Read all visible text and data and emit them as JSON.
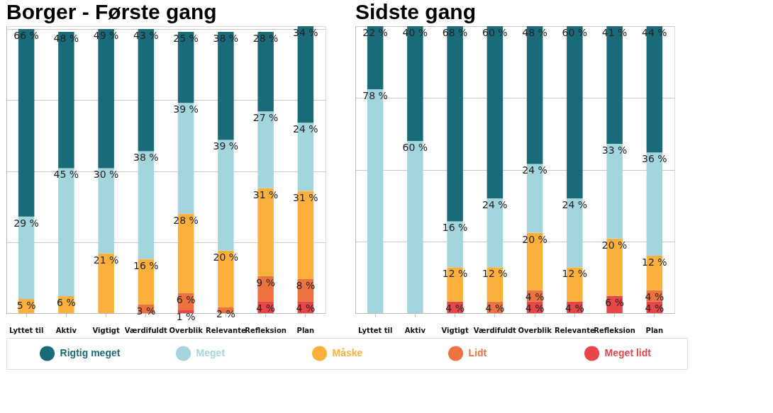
{
  "chart_data": [
    {
      "type": "bar",
      "title": "Borger - Første gang",
      "stacked": true,
      "categories": [
        "Lyttet til",
        "Aktiv",
        "Vigtigt",
        "Værdifuldt",
        "Overblik",
        "Relevante",
        "Refleksion",
        "Plan"
      ],
      "ylim": [
        0,
        101
      ],
      "yticks": [
        {
          "value": 0,
          "label": null
        },
        {
          "value": 25,
          "label": null
        },
        {
          "value": 50,
          "label": null
        },
        {
          "value": 75,
          "label": null
        },
        {
          "value": 100,
          "label": null
        }
      ],
      "tick_labels": "x",
      "grid": "y",
      "legend": "bottom",
      "series": [
        {
          "name": "Meget lidt",
          "color": "#e8474a",
          "values": [
            null,
            null,
            null,
            null,
            1,
            null,
            4,
            4
          ],
          "value_labels": [
            null,
            null,
            null,
            null,
            "1 %",
            null,
            "4 %",
            "4 %"
          ]
        },
        {
          "name": "Lidt",
          "color": "#ee7240",
          "values": [
            null,
            null,
            null,
            3,
            6,
            2,
            9,
            8
          ],
          "value_labels": [
            null,
            null,
            null,
            "3 %",
            "6 %",
            "2 %",
            "9 %",
            "8 %"
          ]
        },
        {
          "name": "Måske",
          "color": "#fbb03b",
          "values": [
            5,
            6,
            21,
            16,
            28,
            20,
            31,
            31
          ],
          "value_labels": [
            "5 %",
            "6 %",
            "21 %",
            "16 %",
            "28 %",
            "20 %",
            "31 %",
            "31 %"
          ]
        },
        {
          "name": "Meget",
          "color": "#a3d5dc",
          "values": [
            29,
            45,
            30,
            38,
            39,
            39,
            27,
            24
          ],
          "value_labels": [
            "29 %",
            "45 %",
            "30 %",
            "38 %",
            "39 %",
            "39 %",
            "27 %",
            "24 %"
          ]
        },
        {
          "name": "Rigtig meget",
          "color": "#1a6b7a",
          "values": [
            66,
            48,
            49,
            43,
            25,
            38,
            28,
            34
          ],
          "value_labels": [
            "66 %",
            "48 %",
            "49 %",
            "43 %",
            "25 %",
            "38 %",
            "28 %",
            "34 %"
          ]
        }
      ]
    },
    {
      "type": "bar",
      "title": "Sidste gang",
      "stacked": true,
      "categories": [
        "Lyttet til",
        "Aktiv",
        "Vigtigt",
        "Værdifuldt",
        "Overblik",
        "Relevante",
        "Refleksion",
        "Plan"
      ],
      "ylim": [
        0,
        100
      ],
      "yticks": [
        {
          "value": 0,
          "label": null
        },
        {
          "value": 25,
          "label": null
        },
        {
          "value": 50,
          "label": null
        },
        {
          "value": 75,
          "label": null
        },
        {
          "value": 100,
          "label": null
        }
      ],
      "tick_labels": "x",
      "grid": "y",
      "series": [
        {
          "color": "#e8474a",
          "values": [
            null,
            null,
            4,
            null,
            4,
            4,
            6,
            4
          ],
          "value_labels": [
            null,
            null,
            "4 %",
            null,
            "4 %",
            "4 %",
            "6 %",
            "4 %"
          ]
        },
        {
          "color": "#ee7240",
          "values": [
            null,
            null,
            null,
            4,
            4,
            null,
            null,
            4
          ],
          "value_labels": [
            null,
            null,
            null,
            "4 %",
            "4 %",
            null,
            null,
            "4 %"
          ]
        },
        {
          "color": "#fbb03b",
          "values": [
            null,
            null,
            12,
            12,
            20,
            12,
            20,
            12
          ],
          "value_labels": [
            null,
            null,
            "12 %",
            "12 %",
            "20 %",
            "12 %",
            "20 %",
            "12 %"
          ]
        },
        {
          "color": "#a3d5dc",
          "values": [
            78,
            60,
            16,
            24,
            24,
            24,
            33,
            36
          ],
          "value_labels": [
            "78 %",
            "60 %",
            "16 %",
            "24 %",
            "24 %",
            "24 %",
            "33 %",
            "36 %"
          ]
        },
        {
          "color": "#1a6b7a",
          "values": [
            22,
            40,
            68,
            60,
            48,
            60,
            41,
            44
          ],
          "value_labels": [
            "22 %",
            "40 %",
            "68 %",
            "60 %",
            "48 %",
            "60 %",
            "41 %",
            "44 %"
          ]
        }
      ]
    }
  ]
}
